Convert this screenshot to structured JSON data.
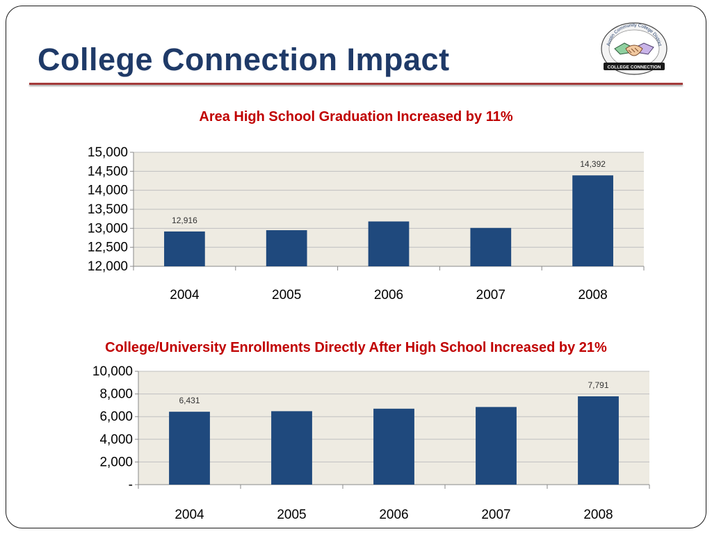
{
  "slide": {
    "title": "College Connection Impact",
    "logo": {
      "icon": "handshake-icon",
      "arc_text": "Austin Community College District",
      "banner_text": "COLLEGE CONNECTION"
    }
  },
  "colors": {
    "title": "#1f3a68",
    "rule": "#a43b3b",
    "chart_title": "#c00000",
    "bar": "#1f497d",
    "plot_bg": "#eeebe2",
    "gridline": "#bfbfbf"
  },
  "chart_data": [
    {
      "type": "bar",
      "title": "Area High School Graduation Increased by 11%",
      "categories": [
        "2004",
        "2005",
        "2006",
        "2007",
        "2008"
      ],
      "values": [
        12916,
        12950,
        13180,
        13010,
        14392
      ],
      "data_labels": [
        "12,916",
        "",
        "",
        "",
        "14,392"
      ],
      "ylim": [
        12000,
        15000
      ],
      "yticks": [
        12000,
        12500,
        13000,
        13500,
        14000,
        14500,
        15000
      ],
      "ytick_labels": [
        "12,000",
        "12,500",
        "13,000",
        "13,500",
        "14,000",
        "14,500",
        "15,000"
      ],
      "xlabel": "",
      "ylabel": "",
      "grid": true
    },
    {
      "type": "bar",
      "title": "College/University Enrollments Directly After High School Increased by 21%",
      "categories": [
        "2004",
        "2005",
        "2006",
        "2007",
        "2008"
      ],
      "values": [
        6431,
        6480,
        6700,
        6850,
        7791
      ],
      "data_labels": [
        "6,431",
        "",
        "",
        "",
        "7,791"
      ],
      "ylim": [
        0,
        10000
      ],
      "yticks": [
        0,
        2000,
        4000,
        6000,
        8000,
        10000
      ],
      "ytick_labels": [
        "-",
        "2,000",
        "4,000",
        "6,000",
        "8,000",
        "10,000"
      ],
      "xlabel": "",
      "ylabel": "",
      "grid": true
    }
  ]
}
